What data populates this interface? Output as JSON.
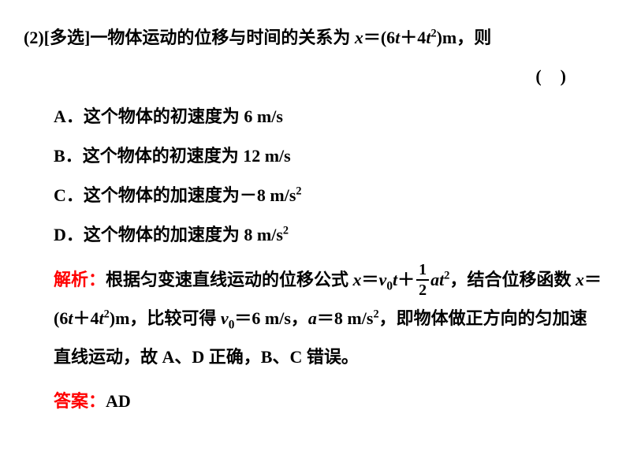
{
  "colors": {
    "text": "#000000",
    "highlight": "#ff0000",
    "background": "#ffffff"
  },
  "font": {
    "main_family": "SimSun",
    "math_family": "Times New Roman",
    "size_base": 22,
    "weight": "bold"
  },
  "question": {
    "number_prefix": "(2)[多选]",
    "stem_part1": "一物体运动的位移与时间的关系为",
    "formula_lhs": "x",
    "formula_eq": "＝",
    "formula_rhs_open": "(6",
    "formula_var1": "t",
    "formula_plus": "＋4",
    "formula_var2": "t",
    "formula_exp": "2",
    "formula_unit": ")m",
    "stem_part2": "，则"
  },
  "paren": {
    "open": "(",
    "close": ")"
  },
  "options": {
    "A": {
      "letter": "A．",
      "text": "这个物体的初速度为",
      "value": " 6 m/s"
    },
    "B": {
      "letter": "B．",
      "text": "这个物体的初速度为",
      "value": " 12 m/s"
    },
    "C": {
      "letter": "C．",
      "text": "这个物体的加速度为",
      "value": "－8 m/s",
      "exp": "2"
    },
    "D": {
      "letter": "D．",
      "text": "这个物体的加速度为",
      "value": " 8 m/s",
      "exp": "2"
    }
  },
  "explanation": {
    "label": "解析：",
    "part1": "根据匀变速直线运动的位移公式",
    "formula1_x": "x",
    "formula1_eq": "＝",
    "formula1_v": "v",
    "formula1_sub0": "0",
    "formula1_t": "t",
    "formula1_plus": "＋",
    "frac_num": "1",
    "frac_den": "2",
    "formula1_a": "a",
    "formula1_t2": "t",
    "formula1_exp": "2",
    "part2_a": "，结合位移函数",
    "formula2_x": "x",
    "formula2_eq": "＝",
    "formula2_open": "(6",
    "formula2_t1": "t",
    "formula2_plus": "＋4",
    "formula2_t2": "t",
    "formula2_exp": "2",
    "formula2_close": ")m",
    "part3": "，比较可得",
    "v0_v": "v",
    "v0_sub": "0",
    "v0_eq": "＝6 m/s",
    "part4": "，",
    "a_var": "a",
    "a_eq": "＝8 m/s",
    "a_exp": "2",
    "part5": "，即物体做正方向的匀加速直线运动，故 A、D 正确，B、C 错误。"
  },
  "answer": {
    "label": "答案：",
    "value": "AD"
  }
}
